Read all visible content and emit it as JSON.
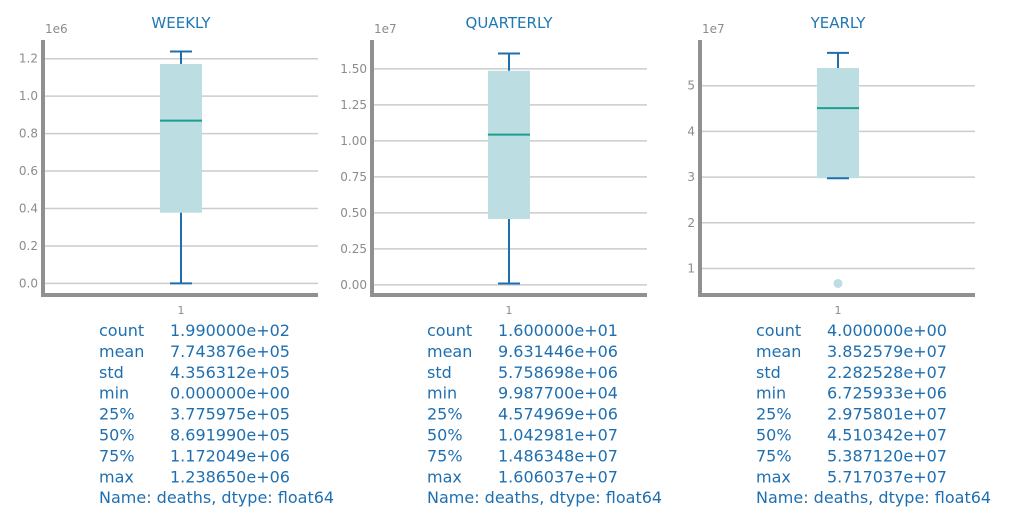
{
  "colors": {
    "title": "#1f77b4",
    "box_fill": "#bcdde1",
    "median": "#1aa08c",
    "whisker": "#1f6fb0",
    "grid": "#cccccc",
    "axis": "#909090",
    "tick_text": "#8c8c8c",
    "stats_text": "#1f6fb0",
    "flier": "#bcdde1"
  },
  "chart_data": [
    {
      "type": "box",
      "title": "WEEKLY",
      "xtick": "1",
      "multiplier": "1e6",
      "yticks": [
        "0.0",
        "0.2",
        "0.4",
        "0.6",
        "0.8",
        "1.0",
        "1.2"
      ],
      "ytick_values": [
        0.0,
        0.2,
        0.4,
        0.6,
        0.8,
        1.0,
        1.2
      ],
      "ylim": [
        -0.062,
        1.3
      ],
      "box": {
        "whislo": 0.0,
        "q1": 0.3776,
        "med": 0.8692,
        "q3": 1.172,
        "whishi": 1.2387
      },
      "fliers": [],
      "stats": [
        {
          "key": "count",
          "value": "1.990000e+02"
        },
        {
          "key": "mean",
          "value": "7.743876e+05"
        },
        {
          "key": "std",
          "value": "4.356312e+05"
        },
        {
          "key": "min",
          "value": "0.000000e+00"
        },
        {
          "key": "25%",
          "value": "3.775975e+05"
        },
        {
          "key": "50%",
          "value": "8.691990e+05"
        },
        {
          "key": "75%",
          "value": "1.172049e+06"
        },
        {
          "key": "max",
          "value": "1.238650e+06"
        }
      ],
      "footer": "Name: deaths, dtype: float64"
    },
    {
      "type": "box",
      "title": "QUARTERLY",
      "xtick": "1",
      "multiplier": "1e7",
      "yticks": [
        "0.00",
        "0.25",
        "0.50",
        "0.75",
        "1.00",
        "1.25",
        "1.50"
      ],
      "ytick_values": [
        0.0,
        0.25,
        0.5,
        0.75,
        1.0,
        1.25,
        1.5
      ],
      "ylim": [
        -0.07,
        1.7
      ],
      "box": {
        "whislo": 0.009988,
        "q1": 0.4575,
        "med": 1.043,
        "q3": 1.4863,
        "whishi": 1.606
      },
      "fliers": [],
      "stats": [
        {
          "key": "count",
          "value": "1.600000e+01"
        },
        {
          "key": "mean",
          "value": "9.631446e+06"
        },
        {
          "key": "std",
          "value": "5.758698e+06"
        },
        {
          "key": "min",
          "value": "9.987700e+04"
        },
        {
          "key": "25%",
          "value": "4.574969e+06"
        },
        {
          "key": "50%",
          "value": "1.042981e+07"
        },
        {
          "key": "75%",
          "value": "1.486348e+07"
        },
        {
          "key": "max",
          "value": "1.606037e+07"
        }
      ],
      "footer": "Name: deaths, dtype: float64"
    },
    {
      "type": "box",
      "title": "YEARLY",
      "xtick": "1",
      "multiplier": "1e7",
      "yticks": [
        "1",
        "2",
        "3",
        "4",
        "5"
      ],
      "ytick_values": [
        1,
        2,
        3,
        4,
        5
      ],
      "ylim": [
        0.42,
        6.0
      ],
      "box": {
        "whislo": 2.9758,
        "q1": 2.9758,
        "med": 4.5103,
        "q3": 5.3871,
        "whishi": 5.717
      },
      "fliers": [
        0.6726
      ],
      "stats": [
        {
          "key": "count",
          "value": "4.000000e+00"
        },
        {
          "key": "mean",
          "value": "3.852579e+07"
        },
        {
          "key": "std",
          "value": "2.282528e+07"
        },
        {
          "key": "min",
          "value": "6.725933e+06"
        },
        {
          "key": "25%",
          "value": "2.975801e+07"
        },
        {
          "key": "50%",
          "value": "4.510342e+07"
        },
        {
          "key": "75%",
          "value": "5.387120e+07"
        },
        {
          "key": "max",
          "value": "5.717037e+07"
        }
      ],
      "footer": "Name: deaths, dtype: float64"
    }
  ]
}
